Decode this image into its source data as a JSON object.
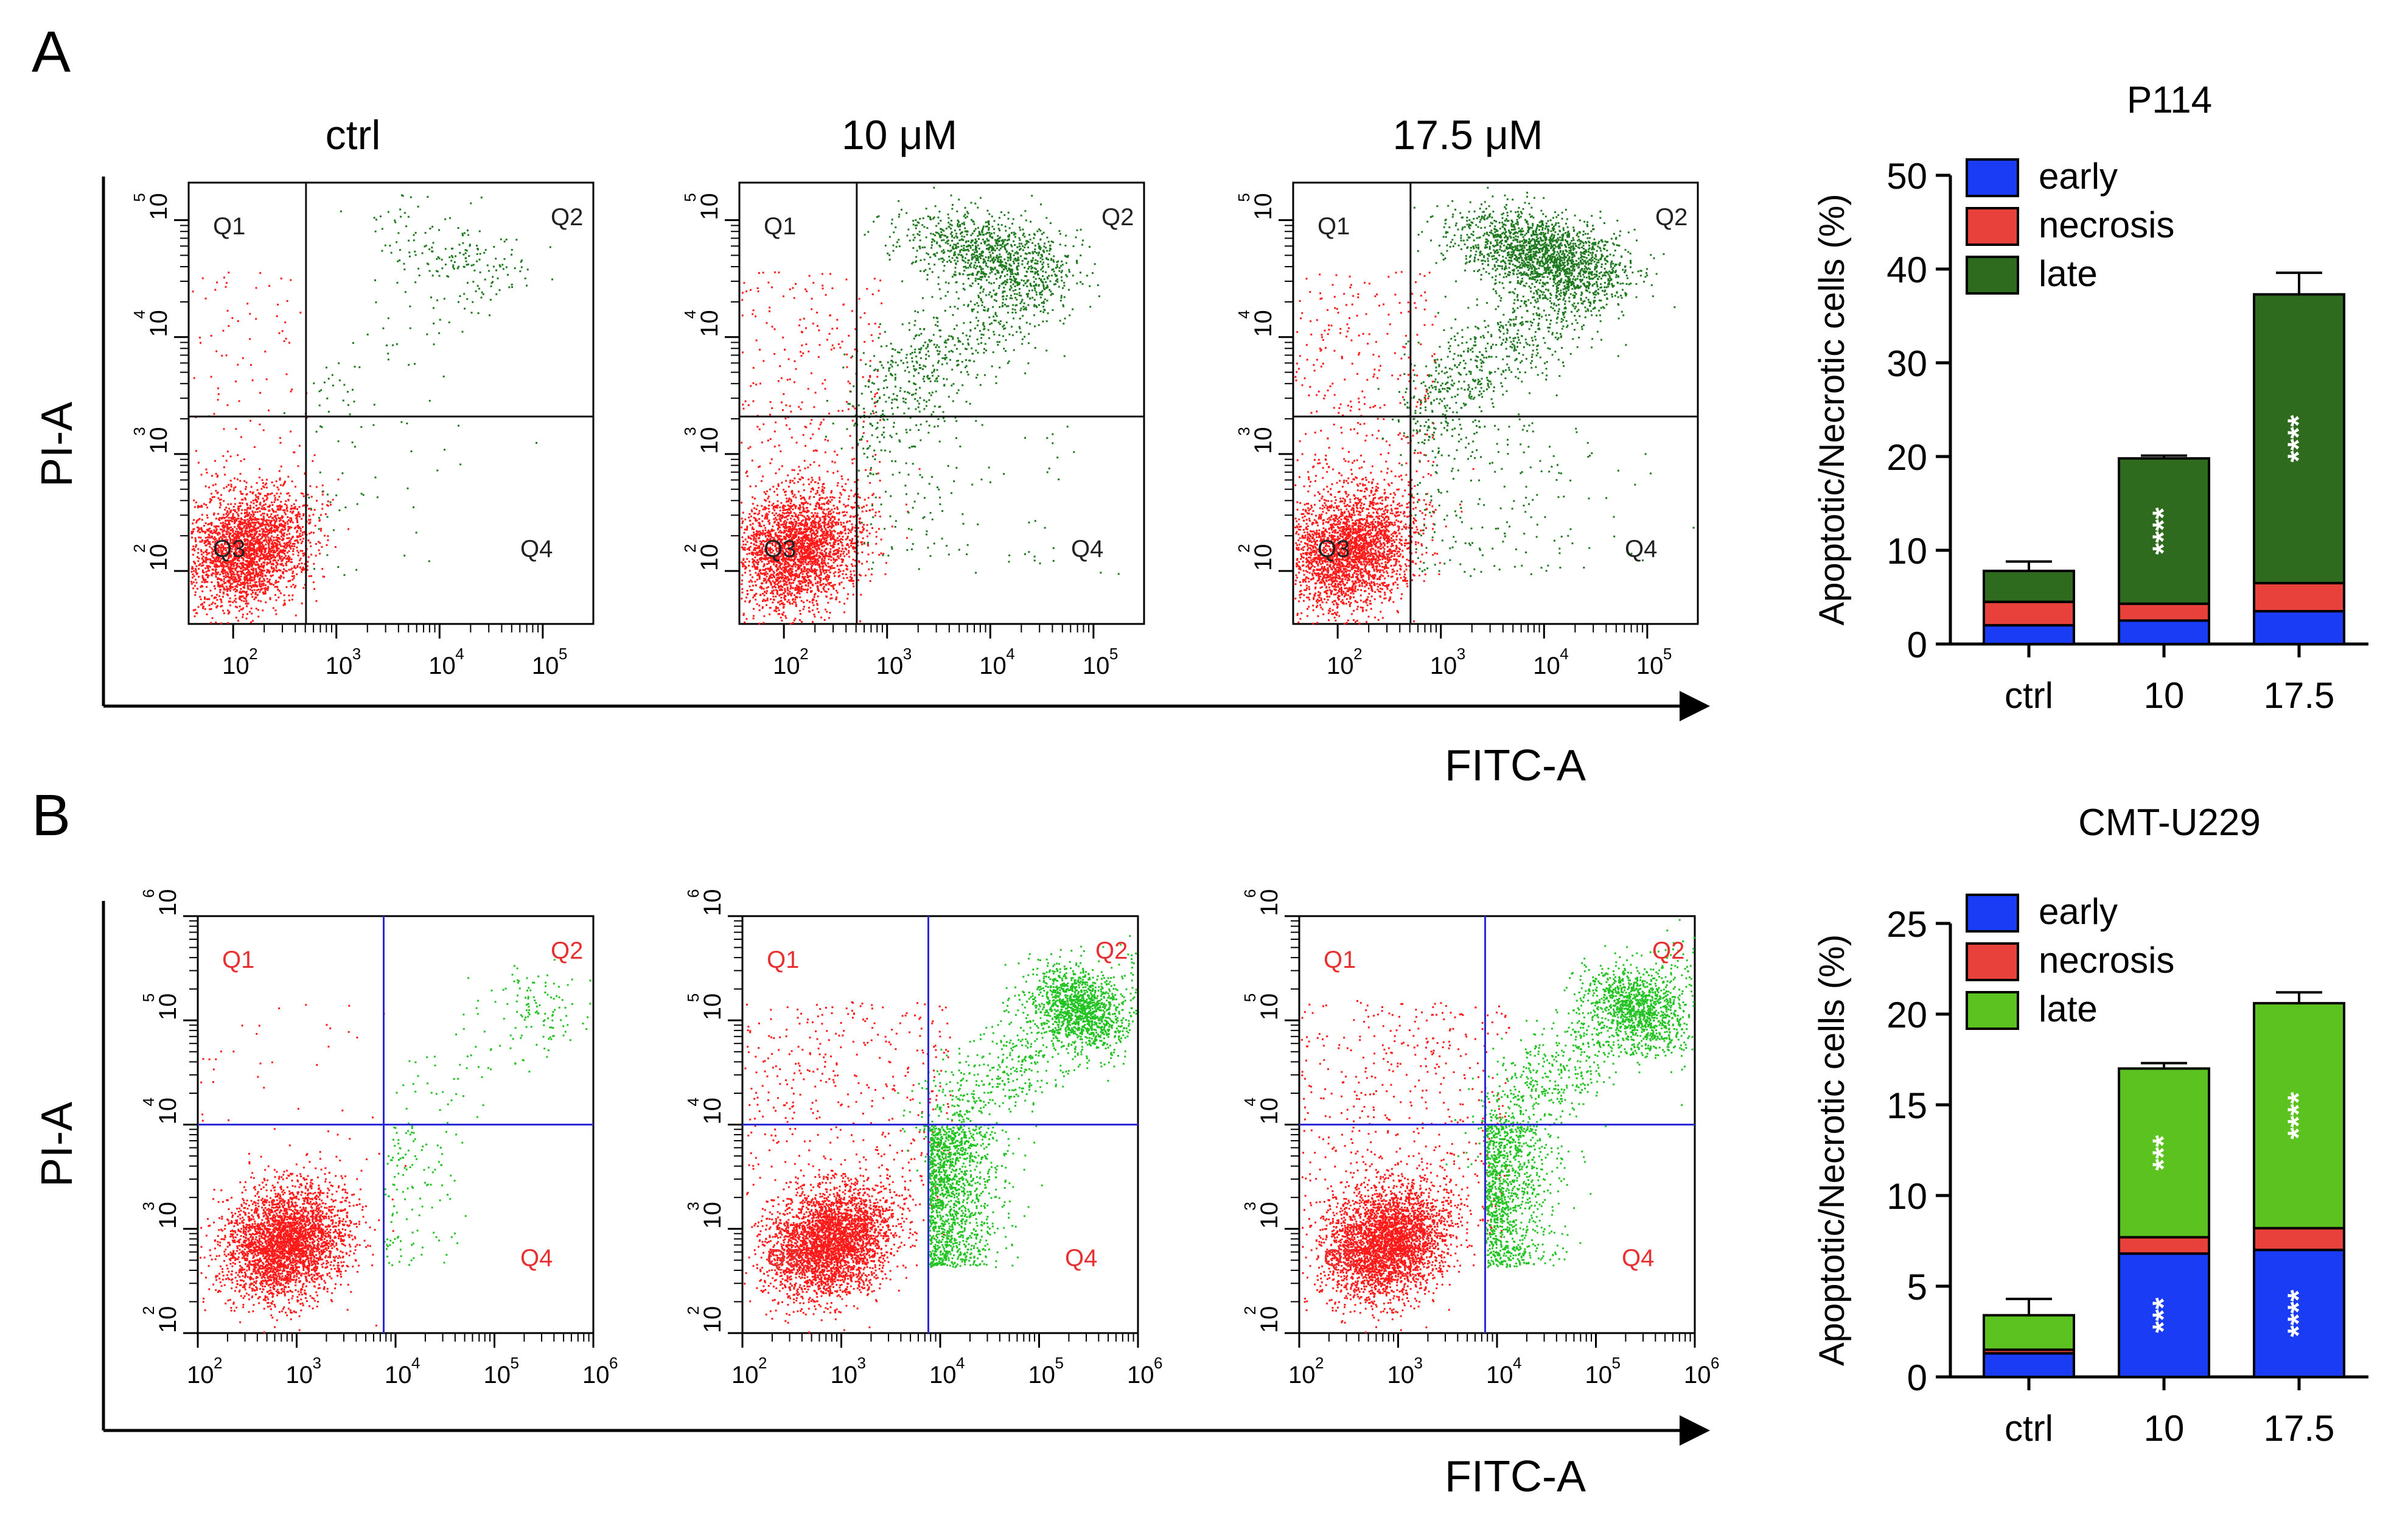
{
  "panels": [
    {
      "letter": "A",
      "y_axis_label": "PI-A",
      "x_axis_label": "FITC-A",
      "condition_labels": [
        "ctrl",
        "10 μM",
        "17.5 μM"
      ],
      "flow_plots": [
        {
          "tick_labels_x": [
            "10",
            "10",
            "10",
            "10"
          ],
          "tick_exponents_x": [
            "2",
            "3",
            "4",
            "5"
          ],
          "tick_labels_y": [
            "10",
            "10",
            "10",
            "10"
          ],
          "tick_exponents_y": [
            "2",
            "3",
            "4",
            "5"
          ],
          "quadrants": [
            "Q1",
            "Q2",
            "Q3",
            "Q4"
          ]
        },
        {
          "tick_labels_x": [
            "10",
            "10",
            "10",
            "10"
          ],
          "tick_exponents_x": [
            "2",
            "3",
            "4",
            "5"
          ],
          "tick_labels_y": [
            "10",
            "10",
            "10",
            "10"
          ],
          "tick_exponents_y": [
            "2",
            "3",
            "4",
            "5"
          ],
          "quadrants": [
            "Q1",
            "Q2",
            "Q3",
            "Q4"
          ]
        },
        {
          "tick_labels_x": [
            "10",
            "10",
            "10",
            "10"
          ],
          "tick_exponents_x": [
            "2",
            "3",
            "4",
            "5"
          ],
          "tick_labels_y": [
            "10",
            "10",
            "10",
            "10"
          ],
          "tick_exponents_y": [
            "2",
            "3",
            "4",
            "5"
          ],
          "quadrants": [
            "Q1",
            "Q2",
            "Q3",
            "Q4"
          ]
        }
      ]
    },
    {
      "letter": "B",
      "y_axis_label": "PI-A",
      "x_axis_label": "FITC-A",
      "flow_plots": [
        {
          "tick_labels_x": [
            "10",
            "10",
            "10",
            "10",
            "10"
          ],
          "tick_exponents_x": [
            "2",
            "3",
            "4",
            "5",
            "6"
          ],
          "tick_labels_y": [
            "10",
            "10",
            "10",
            "10",
            "10"
          ],
          "tick_exponents_y": [
            "2",
            "3",
            "4",
            "5",
            "6"
          ],
          "quadrants": [
            "Q1",
            "Q2",
            "",
            "Q4"
          ]
        },
        {
          "tick_labels_x": [
            "10",
            "10",
            "10",
            "10",
            "10"
          ],
          "tick_exponents_x": [
            "2",
            "3",
            "4",
            "5",
            "6"
          ],
          "tick_labels_y": [
            "10",
            "10",
            "10",
            "10",
            "10"
          ],
          "tick_exponents_y": [
            "2",
            "3",
            "4",
            "5",
            "6"
          ],
          "quadrants": [
            "Q1",
            "Q2",
            "Q3",
            "Q4"
          ]
        },
        {
          "tick_labels_x": [
            "10",
            "10",
            "10",
            "10",
            "10"
          ],
          "tick_exponents_x": [
            "2",
            "3",
            "4",
            "5",
            "6"
          ],
          "tick_labels_y": [
            "10",
            "10",
            "10",
            "10",
            "10"
          ],
          "tick_exponents_y": [
            "2",
            "3",
            "4",
            "5",
            "6"
          ],
          "quadrants": [
            "Q1",
            "Q2",
            "Q3",
            "Q4"
          ]
        }
      ]
    }
  ],
  "colors": {
    "early": "#1a3cf5",
    "necrosis": "#e8403a",
    "late_a": "#2f6b1e",
    "late_b": "#5cc21f",
    "dots_red": "#ff1a1a",
    "dots_green_a": "#1f7a1f",
    "dots_green_b": "#22c322",
    "gate_a": "#111111",
    "gate_b": "#2b2bd6"
  },
  "chart_data": [
    {
      "type": "bar",
      "stacked": true,
      "title": "P114",
      "ylabel": "Apoptotic/Necrotic cells (%)",
      "ylim": [
        0,
        50
      ],
      "yticks": [
        "0",
        "10",
        "20",
        "30",
        "40",
        "50"
      ],
      "categories": [
        "ctrl",
        "10",
        "17.5"
      ],
      "legend": [
        "early",
        "necrosis",
        "late"
      ],
      "legend_position": "top-left",
      "series": [
        {
          "name": "early",
          "values": [
            2.0,
            2.5,
            3.5
          ],
          "errors": [
            1.2,
            0.3,
            0.5
          ],
          "annotations": [
            "",
            "",
            ""
          ]
        },
        {
          "name": "necrosis",
          "values": [
            2.5,
            1.8,
            3.0
          ],
          "errors": [
            0.5,
            0.8,
            0.4
          ],
          "annotations": [
            "",
            "",
            ""
          ]
        },
        {
          "name": "late",
          "values": [
            3.3,
            15.5,
            30.8
          ],
          "errors": [
            1.0,
            0.3,
            2.3
          ],
          "annotations": [
            "",
            "****",
            "****"
          ]
        }
      ]
    },
    {
      "type": "bar",
      "stacked": true,
      "title": "CMT-U229",
      "ylabel": "Apoptotic/Necrotic cells (%)",
      "ylim": [
        0,
        25
      ],
      "yticks": [
        "0",
        "5",
        "10",
        "15",
        "20",
        "25"
      ],
      "categories": [
        "ctrl",
        "10",
        "17.5"
      ],
      "legend": [
        "early",
        "necrosis",
        "late"
      ],
      "legend_position": "top-left",
      "series": [
        {
          "name": "early",
          "values": [
            1.3,
            6.8,
            7.0
          ],
          "errors": [
            0.4,
            0.6,
            0.5
          ],
          "annotations": [
            "",
            "***",
            "****"
          ]
        },
        {
          "name": "necrosis",
          "values": [
            0.2,
            0.9,
            1.2
          ],
          "errors": [
            0.1,
            0.5,
            0.4
          ],
          "annotations": [
            "",
            "",
            ""
          ]
        },
        {
          "name": "late",
          "values": [
            1.9,
            9.3,
            12.4
          ],
          "errors": [
            0.9,
            0.3,
            0.6
          ],
          "annotations": [
            "",
            "***",
            "****"
          ]
        }
      ]
    }
  ]
}
